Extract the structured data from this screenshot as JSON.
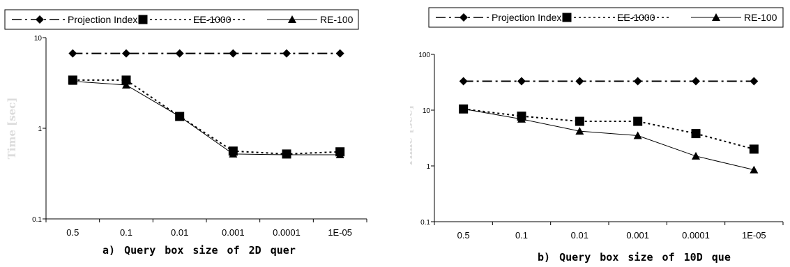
{
  "chart_data": [
    {
      "type": "line",
      "caption": "a)  Query  box  size  of  2D  quer",
      "ylabel": "Time [sec]",
      "yscale": "log",
      "ylim": [
        0.1,
        10
      ],
      "ytick_labels": [
        "0.1",
        "1",
        "10"
      ],
      "categories": [
        "0.5",
        "0.1",
        "0.01",
        "0.001",
        "0.0001",
        "1E-05"
      ],
      "legend_position": "top",
      "series": [
        {
          "name": "Projection Index",
          "values": [
            6.7,
            6.7,
            6.7,
            6.7,
            6.7,
            6.7
          ],
          "marker": "diamond",
          "dash": "14 5 3 5"
        },
        {
          "name": "EE-1000",
          "values": [
            3.4,
            3.4,
            1.35,
            0.56,
            0.52,
            0.55
          ],
          "marker": "square",
          "dash": "3 4"
        },
        {
          "name": "RE-100",
          "values": [
            3.3,
            3.0,
            1.35,
            0.52,
            0.51,
            0.51
          ],
          "marker": "triangle",
          "dash": ""
        }
      ]
    },
    {
      "type": "line",
      "caption": "b)  Query  box  size  of  10D  que",
      "ylabel": "Time [sec]",
      "yscale": "log",
      "ylim": [
        0.1,
        100
      ],
      "ytick_labels": [
        "0.1",
        "1",
        "10",
        "100"
      ],
      "categories": [
        "0.5",
        "0.1",
        "0.01",
        "0.001",
        "0.0001",
        "1E-05"
      ],
      "legend_position": "top",
      "series": [
        {
          "name": "Projection Index",
          "values": [
            33,
            33,
            33,
            33,
            33,
            33
          ],
          "marker": "diamond",
          "dash": "14 5 3 5"
        },
        {
          "name": "EE-1000",
          "values": [
            10.5,
            7.8,
            6.3,
            6.3,
            3.8,
            2.0
          ],
          "marker": "square",
          "dash": "3 4"
        },
        {
          "name": "RE-100",
          "values": [
            10.5,
            6.9,
            4.2,
            3.5,
            1.5,
            0.85
          ],
          "marker": "triangle",
          "dash": ""
        }
      ]
    }
  ]
}
